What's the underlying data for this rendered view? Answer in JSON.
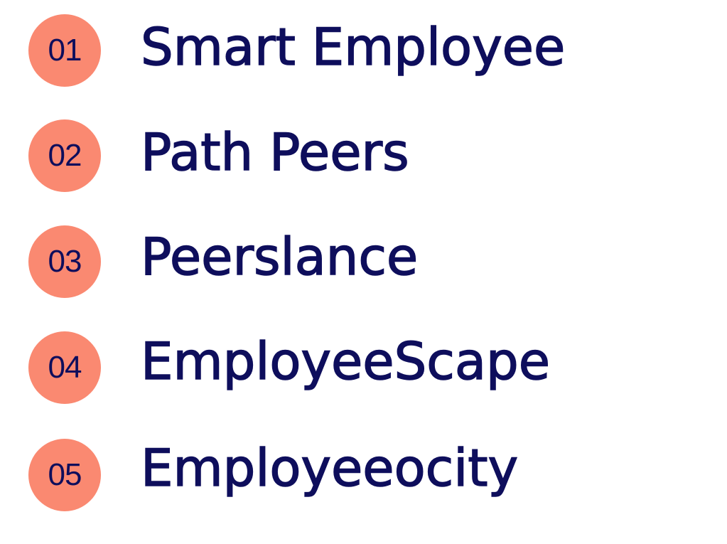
{
  "colors": {
    "badge_fill": "#FA8971",
    "text": "#0E0E5C"
  },
  "items": [
    {
      "number": "01",
      "label": "Smart Employee"
    },
    {
      "number": "02",
      "label": "Path Peers"
    },
    {
      "number": "03",
      "label": "Peerslance"
    },
    {
      "number": "04",
      "label": "EmployeeScape"
    },
    {
      "number": "05",
      "label": "Employeeocity"
    }
  ]
}
